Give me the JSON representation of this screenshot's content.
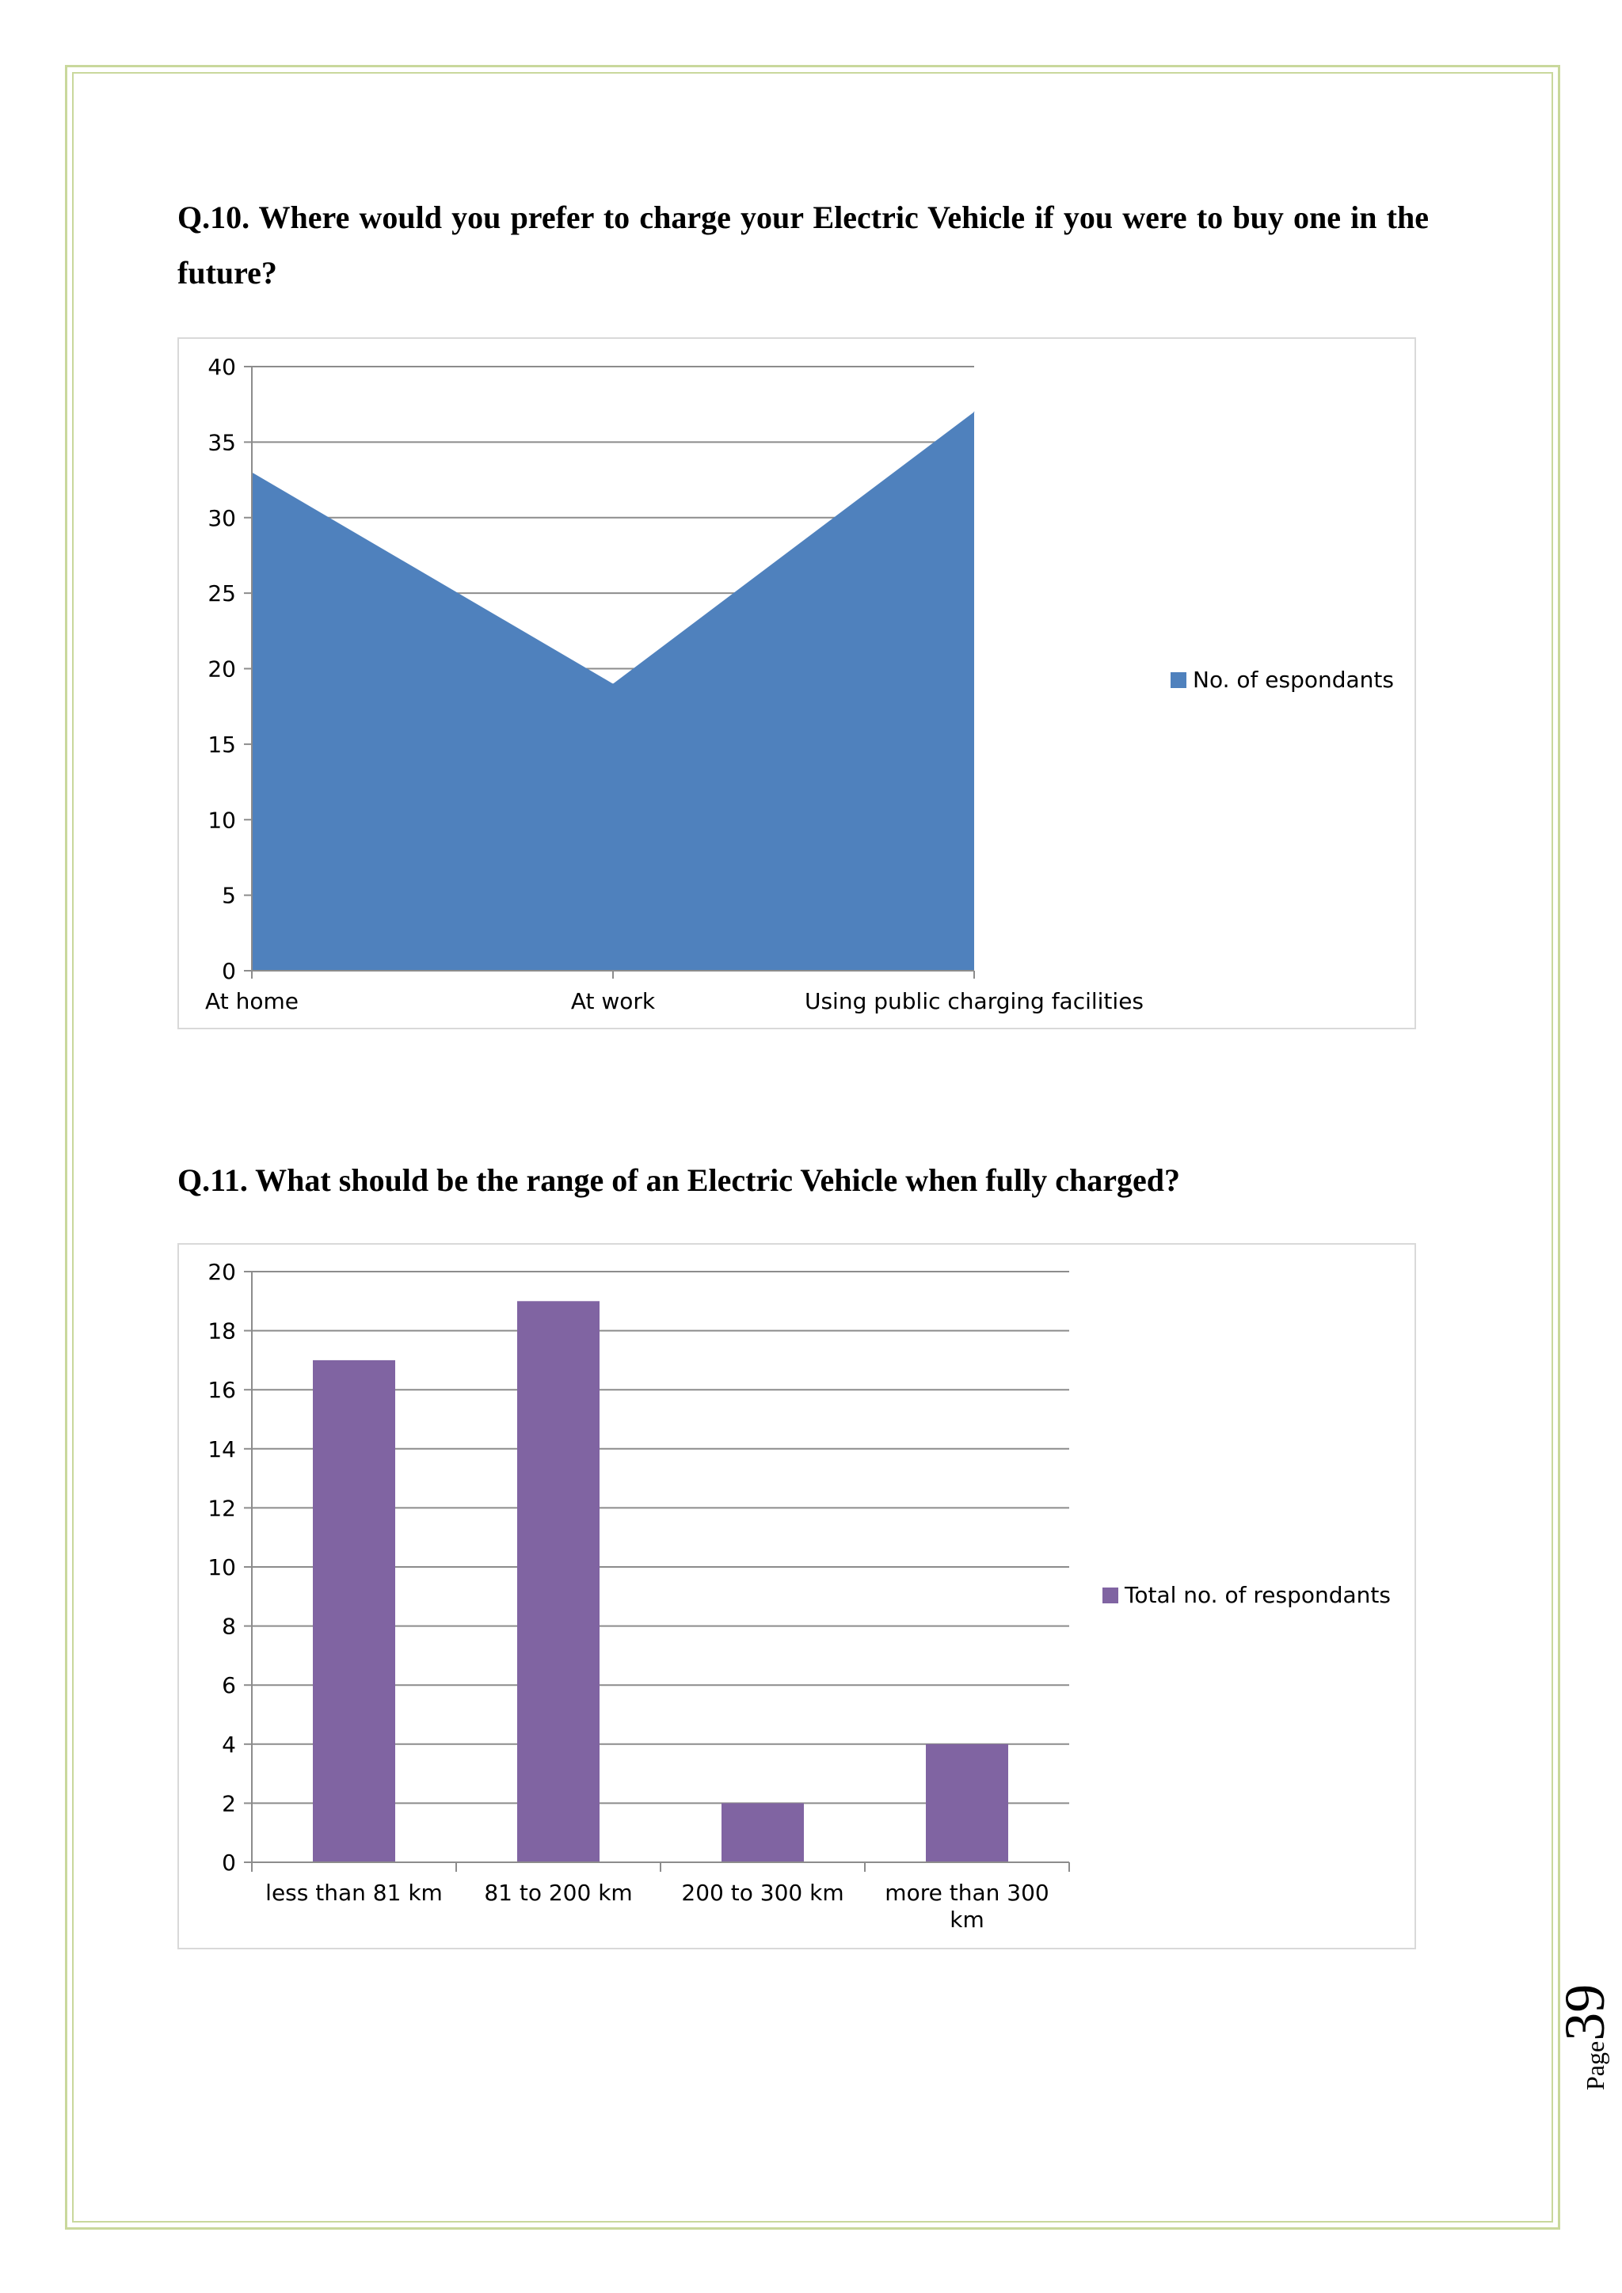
{
  "questions": {
    "q10": "Q.10. Where would you prefer to charge your Electric Vehicle if you were to buy one in the future?",
    "q11": "Q.11. What should be the range of an Electric Vehicle when fully charged?"
  },
  "chart_data": [
    {
      "type": "area",
      "categories": [
        "At home",
        "At work",
        "Using public charging facilities"
      ],
      "series": [
        {
          "name": "No. of espondants",
          "values": [
            33,
            19,
            37
          ],
          "color": "#4f81bd"
        }
      ],
      "ylim": [
        0,
        40
      ],
      "yticks": [
        0,
        5,
        10,
        15,
        20,
        25,
        30,
        35,
        40
      ],
      "grid": true,
      "legend": "right"
    },
    {
      "type": "bar",
      "categories": [
        "less than 81 km",
        "81 to 200 km",
        "200 to 300 km",
        "more than 300 km"
      ],
      "series": [
        {
          "name": "Total no. of respondants",
          "values": [
            17,
            19,
            2,
            4
          ],
          "color": "#8064a2"
        }
      ],
      "ylim": [
        0,
        20
      ],
      "yticks": [
        0,
        2,
        4,
        6,
        8,
        10,
        12,
        14,
        16,
        18,
        20
      ],
      "grid": true,
      "legend": "right"
    }
  ],
  "footer": {
    "page_label": "Page",
    "page_number": "39"
  }
}
